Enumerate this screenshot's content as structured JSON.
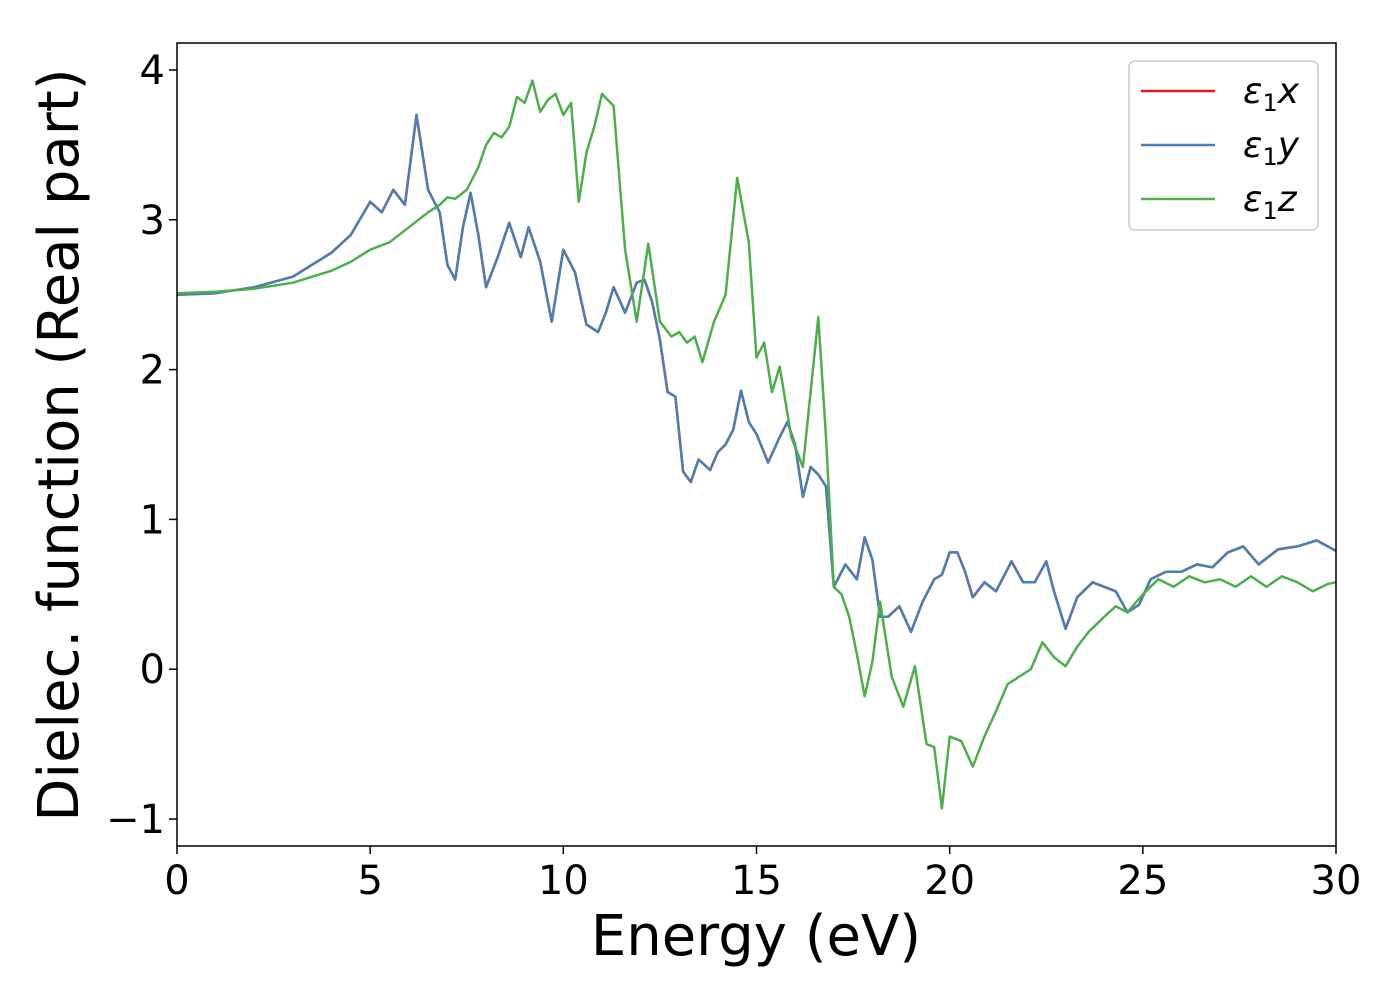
{
  "chart_data": {
    "type": "line",
    "title": "",
    "xlabel": "Energy (eV)",
    "ylabel": "Dielec. function (Real part)",
    "xlim": [
      0,
      30
    ],
    "ylim": [
      -1.18,
      4.18
    ],
    "xticks": [
      0,
      5,
      10,
      15,
      20,
      25,
      30
    ],
    "xtick_labels": [
      "0",
      "5",
      "10",
      "15",
      "20",
      "25",
      "30"
    ],
    "yticks": [
      -1,
      0,
      1,
      2,
      3,
      4
    ],
    "ytick_labels": [
      "−1",
      "0",
      "1",
      "2",
      "3",
      "4"
    ],
    "grid": false,
    "legend_position": "top-right",
    "series": [
      {
        "name": "ε₁x",
        "legend": {
          "symbol": "ε",
          "sub": "1",
          "axis": "x"
        },
        "color": "#e41a1c",
        "x": [
          0,
          1,
          2,
          3,
          4,
          4.5,
          5,
          5.3,
          5.6,
          5.9,
          6.2,
          6.5,
          6.8,
          7.0,
          7.2,
          7.4,
          7.6,
          7.8,
          8.0,
          8.3,
          8.6,
          8.9,
          9.1,
          9.4,
          9.7,
          10.0,
          10.3,
          10.6,
          10.9,
          11.1,
          11.3,
          11.6,
          11.9,
          12.1,
          12.3,
          12.5,
          12.7,
          12.9,
          13.1,
          13.3,
          13.5,
          13.8,
          14.0,
          14.2,
          14.4,
          14.6,
          14.8,
          15.0,
          15.3,
          15.6,
          15.8,
          16.0,
          16.2,
          16.4,
          16.6,
          16.8,
          17.0,
          17.3,
          17.6,
          17.8,
          18.0,
          18.2,
          18.4,
          18.7,
          19.0,
          19.3,
          19.6,
          19.8,
          20.0,
          20.2,
          20.4,
          20.6,
          20.9,
          21.2,
          21.6,
          21.9,
          22.2,
          22.5,
          22.7,
          23.0,
          23.3,
          23.7,
          24.0,
          24.3,
          24.6,
          24.9,
          25.2,
          25.6,
          26.0,
          26.4,
          26.8,
          27.2,
          27.6,
          28.0,
          28.5,
          29.0,
          29.5,
          30.0
        ],
        "y": [
          2.5,
          2.51,
          2.55,
          2.62,
          2.78,
          2.9,
          3.12,
          3.05,
          3.2,
          3.1,
          3.7,
          3.2,
          3.05,
          2.7,
          2.6,
          2.95,
          3.18,
          2.9,
          2.55,
          2.75,
          2.98,
          2.75,
          2.95,
          2.72,
          2.32,
          2.8,
          2.65,
          2.3,
          2.25,
          2.38,
          2.55,
          2.38,
          2.58,
          2.6,
          2.45,
          2.2,
          1.85,
          1.82,
          1.32,
          1.25,
          1.4,
          1.33,
          1.45,
          1.5,
          1.6,
          1.86,
          1.65,
          1.57,
          1.38,
          1.55,
          1.65,
          1.5,
          1.15,
          1.35,
          1.3,
          1.22,
          0.55,
          0.7,
          0.6,
          0.88,
          0.73,
          0.35,
          0.35,
          0.42,
          0.25,
          0.45,
          0.6,
          0.63,
          0.78,
          0.78,
          0.65,
          0.48,
          0.58,
          0.52,
          0.72,
          0.58,
          0.58,
          0.72,
          0.52,
          0.27,
          0.48,
          0.58,
          0.55,
          0.52,
          0.38,
          0.43,
          0.6,
          0.65,
          0.65,
          0.7,
          0.68,
          0.78,
          0.82,
          0.7,
          0.8,
          0.82,
          0.86,
          0.79
        ]
      },
      {
        "name": "ε₁y",
        "legend": {
          "symbol": "ε",
          "sub": "1",
          "axis": "y"
        },
        "color": "#4a7fb5",
        "x": [
          0,
          1,
          2,
          3,
          4,
          4.5,
          5,
          5.3,
          5.6,
          5.9,
          6.2,
          6.5,
          6.8,
          7.0,
          7.2,
          7.4,
          7.6,
          7.8,
          8.0,
          8.3,
          8.6,
          8.9,
          9.1,
          9.4,
          9.7,
          10.0,
          10.3,
          10.6,
          10.9,
          11.1,
          11.3,
          11.6,
          11.9,
          12.1,
          12.3,
          12.5,
          12.7,
          12.9,
          13.1,
          13.3,
          13.5,
          13.8,
          14.0,
          14.2,
          14.4,
          14.6,
          14.8,
          15.0,
          15.3,
          15.6,
          15.8,
          16.0,
          16.2,
          16.4,
          16.6,
          16.8,
          17.0,
          17.3,
          17.6,
          17.8,
          18.0,
          18.2,
          18.4,
          18.7,
          19.0,
          19.3,
          19.6,
          19.8,
          20.0,
          20.2,
          20.4,
          20.6,
          20.9,
          21.2,
          21.6,
          21.9,
          22.2,
          22.5,
          22.7,
          23.0,
          23.3,
          23.7,
          24.0,
          24.3,
          24.6,
          24.9,
          25.2,
          25.6,
          26.0,
          26.4,
          26.8,
          27.2,
          27.6,
          28.0,
          28.5,
          29.0,
          29.5,
          30.0
        ],
        "y": [
          2.5,
          2.51,
          2.55,
          2.62,
          2.78,
          2.9,
          3.12,
          3.05,
          3.2,
          3.1,
          3.7,
          3.2,
          3.05,
          2.7,
          2.6,
          2.95,
          3.18,
          2.9,
          2.55,
          2.75,
          2.98,
          2.75,
          2.95,
          2.72,
          2.32,
          2.8,
          2.65,
          2.3,
          2.25,
          2.38,
          2.55,
          2.38,
          2.58,
          2.6,
          2.45,
          2.2,
          1.85,
          1.82,
          1.32,
          1.25,
          1.4,
          1.33,
          1.45,
          1.5,
          1.6,
          1.86,
          1.65,
          1.57,
          1.38,
          1.55,
          1.65,
          1.5,
          1.15,
          1.35,
          1.3,
          1.22,
          0.55,
          0.7,
          0.6,
          0.88,
          0.73,
          0.35,
          0.35,
          0.42,
          0.25,
          0.45,
          0.6,
          0.63,
          0.78,
          0.78,
          0.65,
          0.48,
          0.58,
          0.52,
          0.72,
          0.58,
          0.58,
          0.72,
          0.52,
          0.27,
          0.48,
          0.58,
          0.55,
          0.52,
          0.38,
          0.43,
          0.6,
          0.65,
          0.65,
          0.7,
          0.68,
          0.78,
          0.82,
          0.7,
          0.8,
          0.82,
          0.86,
          0.79
        ]
      },
      {
        "name": "ε₁z",
        "legend": {
          "symbol": "ε",
          "sub": "1",
          "axis": "z"
        },
        "color": "#4daf4a",
        "x": [
          0,
          1,
          2,
          3,
          4,
          4.5,
          5,
          5.5,
          6.0,
          6.5,
          6.8,
          7.0,
          7.2,
          7.5,
          7.8,
          8.0,
          8.2,
          8.4,
          8.6,
          8.8,
          9.0,
          9.2,
          9.4,
          9.6,
          9.8,
          10.0,
          10.2,
          10.4,
          10.6,
          10.8,
          11.0,
          11.3,
          11.6,
          11.9,
          12.2,
          12.5,
          12.8,
          13.0,
          13.2,
          13.4,
          13.6,
          13.9,
          14.2,
          14.5,
          14.8,
          15.0,
          15.2,
          15.4,
          15.6,
          15.9,
          16.2,
          16.4,
          16.6,
          16.8,
          17.0,
          17.2,
          17.4,
          17.6,
          17.8,
          18.0,
          18.2,
          18.5,
          18.8,
          19.1,
          19.4,
          19.6,
          19.8,
          20.0,
          20.3,
          20.6,
          20.9,
          21.2,
          21.5,
          21.8,
          22.1,
          22.4,
          22.7,
          23.0,
          23.3,
          23.6,
          24.0,
          24.3,
          24.6,
          25.0,
          25.4,
          25.8,
          26.2,
          26.6,
          27.0,
          27.4,
          27.8,
          28.2,
          28.6,
          29.0,
          29.4,
          29.8,
          30.0
        ],
        "y": [
          2.51,
          2.52,
          2.54,
          2.58,
          2.66,
          2.72,
          2.8,
          2.85,
          2.95,
          3.05,
          3.1,
          3.15,
          3.14,
          3.2,
          3.35,
          3.5,
          3.58,
          3.55,
          3.62,
          3.82,
          3.78,
          3.93,
          3.72,
          3.8,
          3.84,
          3.7,
          3.78,
          3.12,
          3.45,
          3.62,
          3.84,
          3.76,
          2.8,
          2.32,
          2.84,
          2.32,
          2.22,
          2.25,
          2.18,
          2.22,
          2.05,
          2.32,
          2.5,
          3.28,
          2.85,
          2.08,
          2.18,
          1.85,
          2.02,
          1.55,
          1.35,
          1.85,
          2.35,
          1.55,
          0.55,
          0.5,
          0.35,
          0.1,
          -0.18,
          0.05,
          0.45,
          -0.05,
          -0.25,
          0.02,
          -0.5,
          -0.52,
          -0.93,
          -0.45,
          -0.48,
          -0.65,
          -0.45,
          -0.28,
          -0.1,
          -0.05,
          0.0,
          0.18,
          0.08,
          0.02,
          0.15,
          0.25,
          0.35,
          0.42,
          0.38,
          0.5,
          0.6,
          0.55,
          0.62,
          0.58,
          0.6,
          0.55,
          0.62,
          0.55,
          0.62,
          0.58,
          0.52,
          0.57,
          0.58
        ]
      }
    ]
  }
}
